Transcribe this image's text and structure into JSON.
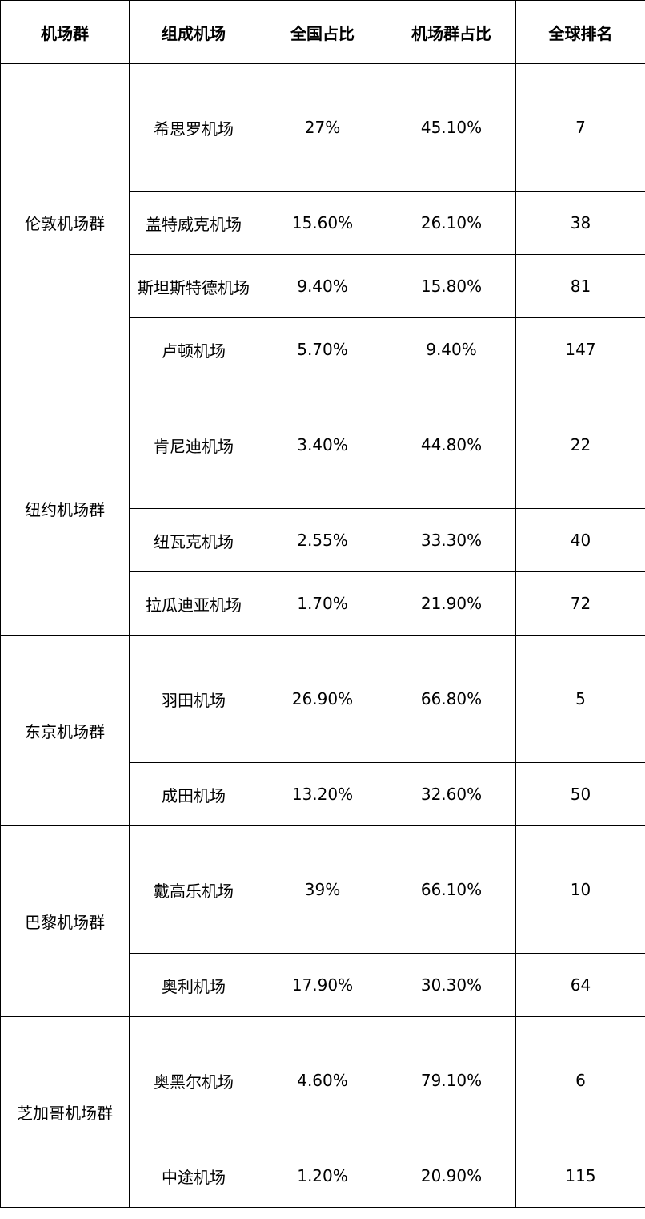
{
  "headers": [
    "机场群",
    "组成机场",
    "全国占比",
    "机场群占比",
    "全球排名"
  ],
  "groups": [
    {
      "name": "伦敦机场群",
      "rows": [
        {
          "airport": "希思罗机场",
          "national_share": "27%",
          "group_share": "45.10%",
          "global_rank": "7"
        },
        {
          "airport": "盖特威克机场",
          "national_share": "15.60%",
          "group_share": "26.10%",
          "global_rank": "38"
        },
        {
          "airport": "斯坦斯特德机场",
          "national_share": "9.40%",
          "group_share": "15.80%",
          "global_rank": "81"
        },
        {
          "airport": "卢顿机场",
          "national_share": "5.70%",
          "group_share": "9.40%",
          "global_rank": "147"
        }
      ]
    },
    {
      "name": "纽约机场群",
      "rows": [
        {
          "airport": "肯尼迪机场",
          "national_share": "3.40%",
          "group_share": "44.80%",
          "global_rank": "22"
        },
        {
          "airport": "纽瓦克机场",
          "national_share": "2.55%",
          "group_share": "33.30%",
          "global_rank": "40"
        },
        {
          "airport": "拉瓜迪亚机场",
          "national_share": "1.70%",
          "group_share": "21.90%",
          "global_rank": "72"
        }
      ]
    },
    {
      "name": "东京机场群",
      "rows": [
        {
          "airport": "羽田机场",
          "national_share": "26.90%",
          "group_share": "66.80%",
          "global_rank": "5"
        },
        {
          "airport": "成田机场",
          "national_share": "13.20%",
          "group_share": "32.60%",
          "global_rank": "50"
        }
      ]
    },
    {
      "name": "巴黎机场群",
      "rows": [
        {
          "airport": "戴高乐机场",
          "national_share": "39%",
          "group_share": "66.10%",
          "global_rank": "10"
        },
        {
          "airport": "奥利机场",
          "national_share": "17.90%",
          "group_share": "30.30%",
          "global_rank": "64"
        }
      ]
    },
    {
      "name": "芝加哥机场群",
      "rows": [
        {
          "airport": "奥黑尔机场",
          "national_share": "4.60%",
          "group_share": "79.10%",
          "global_rank": "6"
        },
        {
          "airport": "中途机场",
          "national_share": "1.20%",
          "group_share": "20.90%",
          "global_rank": "115"
        }
      ]
    }
  ]
}
